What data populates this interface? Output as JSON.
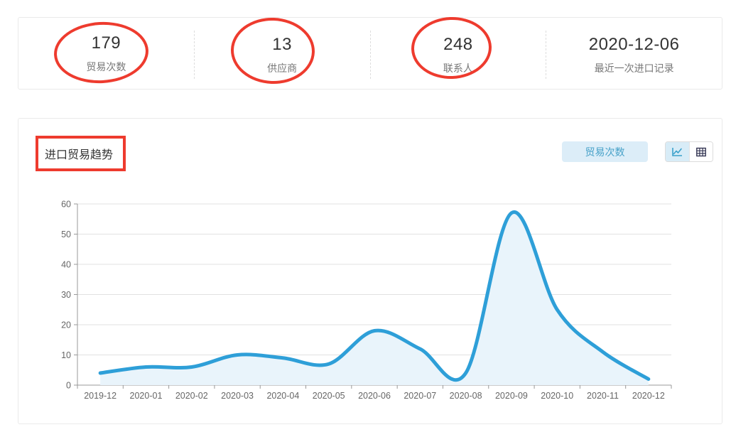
{
  "stats": [
    {
      "value": "179",
      "label": "贸易次数"
    },
    {
      "value": "13",
      "label": "供应商"
    },
    {
      "value": "248",
      "label": "联系人"
    },
    {
      "value": "2020-12-06",
      "label": "最近一次进口记录"
    }
  ],
  "chart_section": {
    "title": "进口贸易趋势",
    "series_button_label": "贸易次数",
    "view_modes": [
      "line-chart",
      "table"
    ]
  },
  "chart_data": {
    "type": "area",
    "title": "进口贸易趋势",
    "x": [
      "2019-12",
      "2020-01",
      "2020-02",
      "2020-03",
      "2020-04",
      "2020-05",
      "2020-06",
      "2020-07",
      "2020-08",
      "2020-09",
      "2020-10",
      "2020-11",
      "2020-12"
    ],
    "series": [
      {
        "name": "贸易次数",
        "values": [
          4,
          6,
          6,
          10,
          9,
          7,
          18,
          12,
          4,
          57,
          25,
          11,
          2
        ]
      }
    ],
    "ylim": [
      0,
      60
    ],
    "yticks": [
      0,
      10,
      20,
      30,
      40,
      50,
      60
    ],
    "grid": true,
    "legend_position": "none",
    "smooth": true
  },
  "theme": {
    "line_color": "#2e9fd8",
    "area_fill": "#e9f4fb",
    "grid_color": "#e2e2e2",
    "axis_color": "#999999",
    "tick_label_color": "#666666",
    "accent_bg": "#dcedf8",
    "accent_text": "#48a2c9",
    "annotation_red": "#ee3b2e"
  }
}
